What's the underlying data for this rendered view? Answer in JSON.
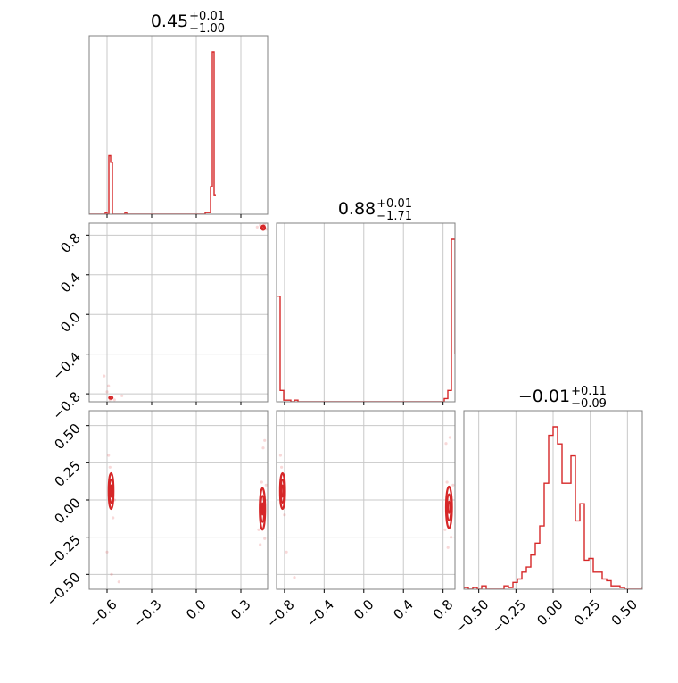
{
  "chart_data": {
    "type": "corner",
    "color": "#d62728",
    "parameters": [
      {
        "title": {
          "value": "0.45",
          "plus": "+0.01",
          "minus": "−1.00"
        },
        "range": [
          -0.72,
          -0.12,
          0.48
        ],
        "ticks": [
          -0.6,
          -0.3,
          0.0,
          0.3
        ],
        "tick_labels": [
          "−0.6",
          "−0.3",
          "0.0",
          "0.3"
        ]
      },
      {
        "title": {
          "value": "0.88",
          "plus": "+0.01",
          "minus": "−1.71"
        },
        "range": [
          -0.88,
          0.92
        ],
        "ticks": [
          -0.8,
          -0.4,
          0.0,
          0.4,
          0.8
        ],
        "tick_labels": [
          "−0.8",
          "−0.4",
          "0.0",
          "0.4",
          "0.8"
        ]
      },
      {
        "title": {
          "value": "−0.01",
          "plus": "+0.11",
          "minus": "−0.09"
        },
        "range": [
          -0.6,
          0.6
        ],
        "ticks": [
          -0.5,
          -0.25,
          0.0,
          0.25,
          0.5
        ],
        "tick_labels": [
          "−0.50",
          "−0.25",
          "0.00",
          "0.25",
          "0.50"
        ]
      }
    ],
    "histograms": [
      {
        "bin_start": -0.72,
        "bin_width": 0.012,
        "counts": [
          0,
          0,
          0,
          0,
          0,
          0,
          0,
          0,
          0,
          0.01,
          0,
          0.36,
          0.32,
          0,
          0,
          0,
          0,
          0,
          0,
          0,
          0.01,
          0,
          0,
          0,
          0,
          0,
          0,
          0,
          0,
          0,
          0,
          0,
          0,
          0,
          0,
          0,
          0,
          0,
          0,
          0,
          0,
          0,
          0,
          0,
          0,
          0,
          0,
          0,
          0,
          0,
          0,
          0,
          0,
          0,
          0,
          0,
          0,
          0,
          0,
          0,
          0,
          0,
          0,
          0,
          0,
          0.01,
          0.01,
          0.01,
          0.17,
          1.0,
          0.12
        ]
      },
      {
        "bin_start": -0.88,
        "bin_width": 0.036,
        "counts": [
          0.65,
          0.07,
          0.01,
          0.01,
          0,
          0.01,
          0,
          0,
          0,
          0,
          0,
          0,
          0,
          0,
          0,
          0,
          0,
          0,
          0,
          0,
          0,
          0,
          0,
          0,
          0,
          0,
          0,
          0,
          0,
          0,
          0,
          0,
          0,
          0,
          0,
          0,
          0,
          0,
          0,
          0,
          0,
          0,
          0,
          0,
          0,
          0,
          0,
          0.02,
          0.07,
          1.0,
          0.3
        ]
      },
      {
        "bin_start": -0.6,
        "bin_width": 0.03,
        "counts": [
          0.01,
          0,
          0.01,
          0,
          0.02,
          0,
          0,
          0,
          0,
          0.02,
          0.01,
          0.04,
          0.06,
          0.1,
          0.13,
          0.2,
          0.27,
          0.37,
          0.62,
          0.9,
          0.95,
          0.85,
          0.62,
          0.62,
          0.78,
          0.4,
          0.5,
          0.17,
          0.18,
          0.1,
          0.1,
          0.06,
          0.05,
          0.02,
          0.02,
          0.01,
          0,
          0,
          0,
          0,
          0.01,
          0.01
        ]
      }
    ],
    "pairs": [
      {
        "x_param": 0,
        "y_param": 1,
        "contours": [
          {
            "cx": 0.45,
            "cy": 0.875,
            "rx": 0.012,
            "ry": 0.022
          },
          {
            "cx": 0.445,
            "cy": 0.88,
            "rx": 0.006,
            "ry": 0.012
          },
          {
            "cx": -0.575,
            "cy": -0.84,
            "rx": 0.013,
            "ry": 0.013
          },
          {
            "cx": -0.575,
            "cy": -0.84,
            "rx": 0.006,
            "ry": 0.007
          }
        ],
        "points": [
          [
            -0.6,
            -0.78
          ],
          [
            -0.55,
            -0.86
          ],
          [
            -0.5,
            -0.82
          ],
          [
            -0.59,
            -0.72
          ],
          [
            0.43,
            0.9
          ],
          [
            0.47,
            0.86
          ],
          [
            0.41,
            0.88
          ],
          [
            0.46,
            0.91
          ],
          [
            -0.58,
            -0.86
          ],
          [
            -0.62,
            -0.62
          ]
        ]
      },
      {
        "x_param": 0,
        "y_param": 2,
        "contours": [
          {
            "cx": -0.573,
            "cy": 0.06,
            "rx": 0.016,
            "ry": 0.12
          },
          {
            "cx": -0.573,
            "cy": 0.06,
            "rx": 0.01,
            "ry": 0.08
          },
          {
            "cx": -0.573,
            "cy": 0.06,
            "rx": 0.005,
            "ry": 0.04
          },
          {
            "cx": 0.445,
            "cy": -0.06,
            "rx": 0.018,
            "ry": 0.14
          },
          {
            "cx": 0.445,
            "cy": -0.06,
            "rx": 0.011,
            "ry": 0.09
          },
          {
            "cx": 0.445,
            "cy": -0.06,
            "rx": 0.005,
            "ry": 0.04
          }
        ],
        "points": [
          [
            -0.58,
            0.22
          ],
          [
            -0.56,
            -0.12
          ],
          [
            -0.55,
            0.0
          ],
          [
            -0.59,
            0.3
          ],
          [
            -0.6,
            -0.35
          ],
          [
            -0.52,
            -0.55
          ],
          [
            0.44,
            0.12
          ],
          [
            0.46,
            -0.26
          ],
          [
            0.43,
            -0.3
          ],
          [
            0.45,
            0.35
          ],
          [
            0.47,
            0.1
          ],
          [
            0.42,
            -0.2
          ],
          [
            -0.57,
            -0.5
          ],
          [
            0.46,
            0.4
          ]
        ]
      },
      {
        "x_param": 1,
        "y_param": 2,
        "contours": [
          {
            "cx": -0.82,
            "cy": 0.06,
            "rx": 0.025,
            "ry": 0.12
          },
          {
            "cx": -0.82,
            "cy": 0.06,
            "rx": 0.015,
            "ry": 0.08
          },
          {
            "cx": -0.82,
            "cy": 0.06,
            "rx": 0.008,
            "ry": 0.04
          },
          {
            "cx": 0.86,
            "cy": -0.05,
            "rx": 0.03,
            "ry": 0.14
          },
          {
            "cx": 0.86,
            "cy": -0.05,
            "rx": 0.018,
            "ry": 0.09
          },
          {
            "cx": 0.86,
            "cy": -0.05,
            "rx": 0.009,
            "ry": 0.04
          }
        ],
        "points": [
          [
            -0.83,
            0.22
          ],
          [
            -0.8,
            -0.1
          ],
          [
            -0.84,
            0.3
          ],
          [
            -0.78,
            -0.35
          ],
          [
            -0.7,
            -0.52
          ],
          [
            0.84,
            0.12
          ],
          [
            0.88,
            -0.25
          ],
          [
            0.85,
            -0.32
          ],
          [
            0.83,
            0.38
          ],
          [
            0.9,
            0.1
          ],
          [
            0.82,
            -0.2
          ],
          [
            0.87,
            0.42
          ]
        ]
      }
    ]
  }
}
